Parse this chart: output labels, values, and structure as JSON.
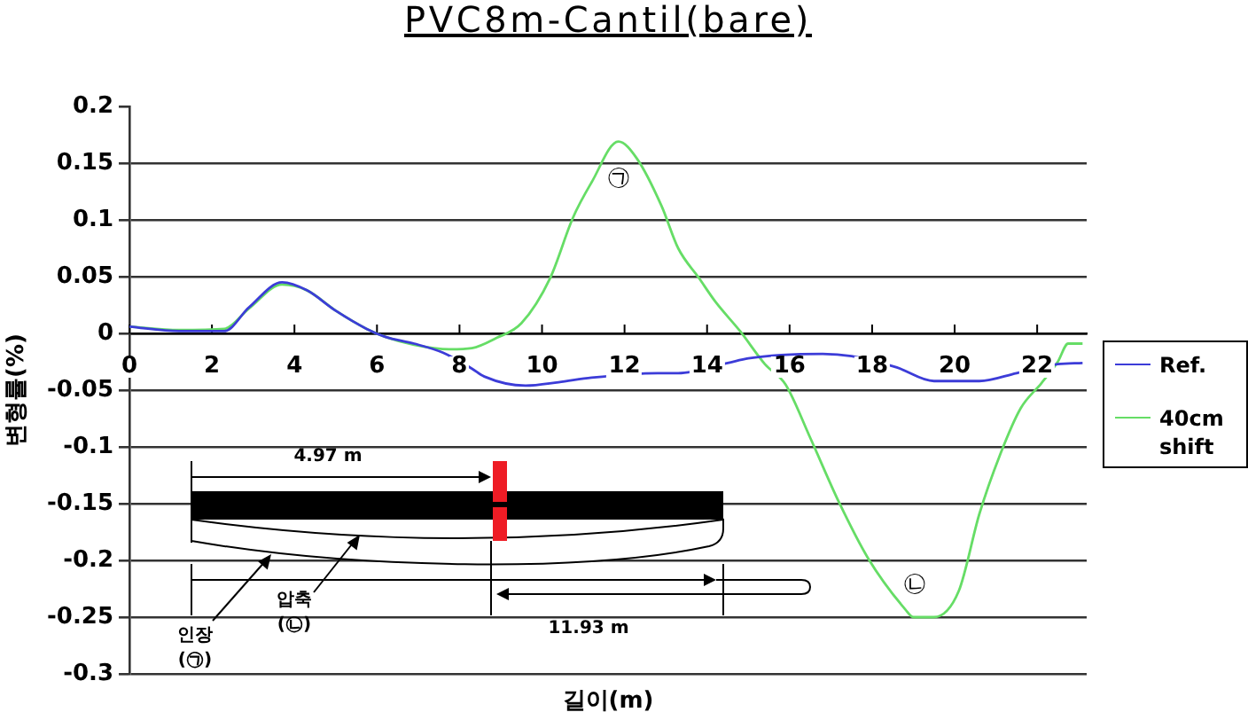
{
  "chart_data": {
    "type": "line",
    "title": "PVC8m-Cantil(bare)",
    "xlabel": "길이(m)",
    "ylabel": "변형률(%)",
    "xlim": [
      0,
      23.2
    ],
    "xticks": [
      0,
      2,
      4,
      6,
      8,
      10,
      12,
      14,
      16,
      18,
      20,
      22
    ],
    "ylim": [
      -0.3,
      0.2
    ],
    "yticks": [
      0.2,
      0.15,
      0.1,
      0.05,
      0,
      -0.05,
      -0.1,
      -0.15,
      -0.2,
      -0.25,
      -0.3
    ],
    "grid": "y",
    "legend": "right",
    "series": [
      {
        "name": "Ref.",
        "color": "#3c3cd8",
        "x": [
          0,
          1.2,
          2.3,
          2.9,
          3.7,
          4.3,
          5.0,
          5.75,
          6.2,
          6.9,
          7.6,
          8.3,
          8.6,
          9.6,
          10.4,
          11.2,
          12.8,
          13.3,
          14.5,
          15.0,
          15.8,
          16.8,
          17.5,
          18.6,
          19.5,
          20.6,
          21.5,
          22.5,
          23.1
        ],
        "values": [
          0.006,
          0.002,
          0.002,
          0.023,
          0.045,
          0.038,
          0.02,
          0.004,
          -0.003,
          -0.009,
          -0.017,
          -0.031,
          -0.038,
          -0.046,
          -0.043,
          -0.039,
          -0.035,
          -0.035,
          -0.026,
          -0.022,
          -0.019,
          -0.018,
          -0.02,
          -0.03,
          -0.042,
          -0.042,
          -0.035,
          -0.027,
          -0.026
        ]
      },
      {
        "name": "40cm shift",
        "color": "#66dd66",
        "x": [
          0,
          1.2,
          2.3,
          2.9,
          3.7,
          4.3,
          5.0,
          5.75,
          6.2,
          6.9,
          7.75,
          8.3,
          8.9,
          9.5,
          10.2,
          10.75,
          11.2,
          11.85,
          12.3,
          12.9,
          13.3,
          13.8,
          14.2,
          14.8,
          15.4,
          15.9,
          16.5,
          17.2,
          17.9,
          18.8,
          19.0,
          19.5,
          20.1,
          20.6,
          21.1,
          21.6,
          22.1,
          22.5,
          22.75,
          23.1
        ],
        "values": [
          0.006,
          0.003,
          0.004,
          0.022,
          0.043,
          0.038,
          0.02,
          0.004,
          -0.003,
          -0.01,
          -0.014,
          -0.013,
          -0.004,
          0.009,
          0.049,
          0.102,
          0.133,
          0.169,
          0.154,
          0.112,
          0.075,
          0.049,
          0.028,
          0.002,
          -0.027,
          -0.045,
          -0.092,
          -0.149,
          -0.198,
          -0.243,
          -0.25,
          -0.25,
          -0.227,
          -0.159,
          -0.107,
          -0.066,
          -0.044,
          -0.025,
          -0.009,
          -0.009
        ]
      }
    ],
    "annotations": [
      "㉠",
      "㉡",
      "4.97 m",
      "11.93 m",
      "인장 (㉠)",
      "압축 (㉡)"
    ]
  }
}
